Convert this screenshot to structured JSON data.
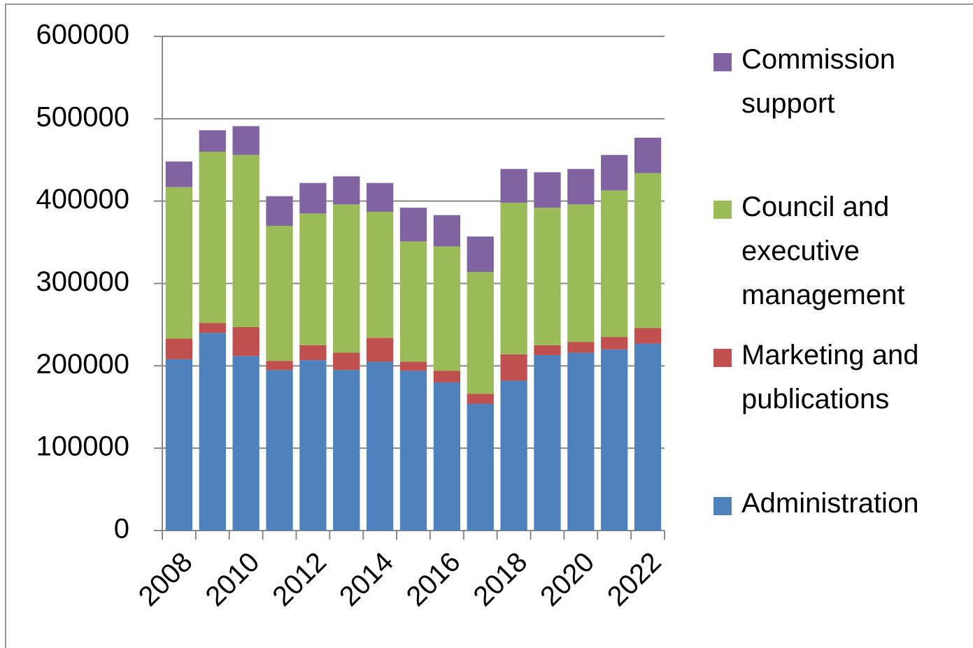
{
  "chart_data": {
    "type": "stacked_bar",
    "categories": [
      "2008",
      null,
      "2010",
      null,
      "2012",
      null,
      "2014",
      null,
      "2016",
      null,
      "2018",
      null,
      "2020",
      null,
      "2022"
    ],
    "series": [
      {
        "name": "Administration",
        "color": "#4f81bd",
        "values": [
          208000,
          240000,
          212000,
          195000,
          207000,
          195000,
          205000,
          194000,
          180000,
          154000,
          182000,
          213000,
          216000,
          220000,
          227000
        ]
      },
      {
        "name": "Marketing and publications",
        "color": "#c0504d",
        "values": [
          25000,
          12000,
          35000,
          11000,
          18000,
          21000,
          29000,
          11000,
          14000,
          12000,
          32000,
          12000,
          13000,
          15000,
          19000
        ]
      },
      {
        "name": "Council and executive management",
        "color": "#9bbb59",
        "values": [
          184000,
          208000,
          209000,
          164000,
          160000,
          180000,
          153000,
          146000,
          151000,
          148000,
          184000,
          167000,
          167000,
          178000,
          188000
        ]
      },
      {
        "name": "Commission support",
        "color": "#8064a2",
        "values": [
          31000,
          26000,
          35000,
          36000,
          37000,
          34000,
          35000,
          41000,
          38000,
          43000,
          41000,
          43000,
          43000,
          43000,
          43000
        ]
      }
    ],
    "ylim": [
      0,
      600000
    ],
    "yticks": [
      0,
      100000,
      200000,
      300000,
      400000,
      500000,
      600000
    ],
    "grid": true,
    "legend": "right"
  }
}
